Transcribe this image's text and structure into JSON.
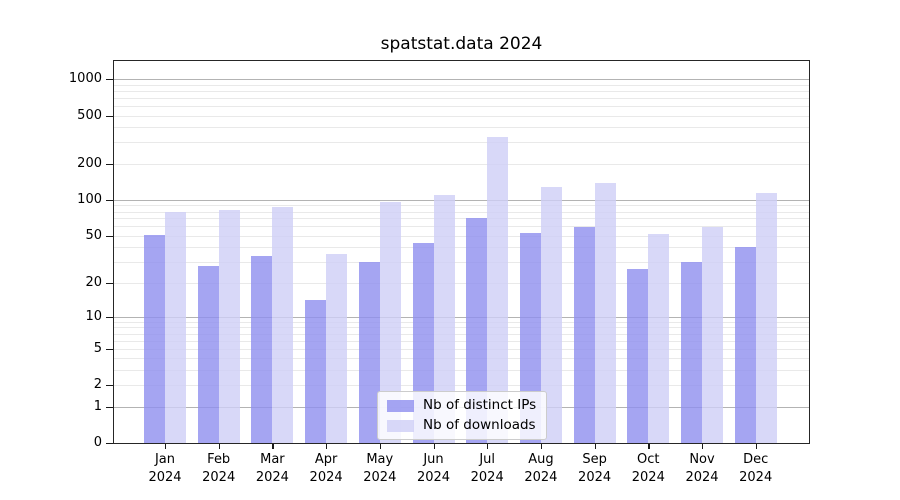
{
  "chart_data": {
    "type": "bar",
    "title": "spatstat.data 2024",
    "categories": [
      "Jan",
      "Feb",
      "Mar",
      "Apr",
      "May",
      "Jun",
      "Jul",
      "Aug",
      "Sep",
      "Oct",
      "Nov",
      "Dec"
    ],
    "tick_year": "2024",
    "series": [
      {
        "name": "Nb of distinct IPs",
        "color": "#8e8eef",
        "values": [
          51,
          28,
          34,
          14,
          30,
          44,
          70,
          53,
          59,
          26,
          30,
          40
        ]
      },
      {
        "name": "Nb of downloads",
        "color": "#cecef6",
        "values": [
          79,
          82,
          88,
          35,
          96,
          110,
          334,
          128,
          137,
          52,
          59,
          114
        ]
      }
    ],
    "xlabel": "",
    "ylabel": "",
    "yscale": "log1p",
    "y_ticks": [
      0,
      1,
      2,
      5,
      10,
      20,
      50,
      100,
      200,
      500,
      1000
    ],
    "ylim": [
      0,
      1435
    ],
    "grid": true,
    "legend_position": "inside-bottom-center"
  }
}
